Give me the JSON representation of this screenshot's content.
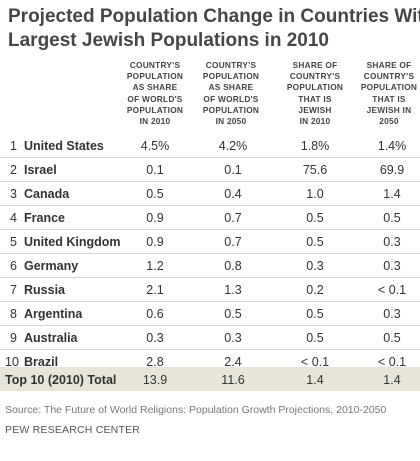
{
  "title": {
    "line1": "Projected Population Change in Countries With",
    "line2": "Largest Jewish Populations in 2010"
  },
  "columns": [
    {
      "line1": "COUNTRY'S",
      "line2": "POPULATION",
      "line3": "AS SHARE",
      "line4": "OF WORLD'S",
      "line5": "POPULATION",
      "line6": "IN 2010"
    },
    {
      "line1": "COUNTRY'S",
      "line2": "POPULATION",
      "line3": "AS SHARE",
      "line4": "OF WORLD'S",
      "line5": "POPULATION",
      "line6": "IN 2050"
    },
    {
      "line1": "SHARE OF",
      "line2": "COUNTRY'S",
      "line3": "POPULATION",
      "line4": "THAT IS",
      "line5": "JEWISH",
      "line6": "IN 2010"
    },
    {
      "line1": "SHARE OF",
      "line2": "COUNTRY'S",
      "line3": "POPULATION",
      "line4": "THAT IS",
      "line5": "JEWISH IN",
      "line6": "2050"
    }
  ],
  "rows": [
    {
      "rank": "1",
      "country": "United States",
      "v1": "4.5%",
      "v2": "4.2%",
      "v3": "1.8%",
      "v4": "1.4%"
    },
    {
      "rank": "2",
      "country": "Israel",
      "v1": "0.1",
      "v2": "0.1",
      "v3": "75.6",
      "v4": "69.9"
    },
    {
      "rank": "3",
      "country": "Canada",
      "v1": "0.5",
      "v2": "0.4",
      "v3": "1.0",
      "v4": "1.4"
    },
    {
      "rank": "4",
      "country": "France",
      "v1": "0.9",
      "v2": "0.7",
      "v3": "0.5",
      "v4": "0.5"
    },
    {
      "rank": "5",
      "country": "United Kingdom",
      "v1": "0.9",
      "v2": "0.7",
      "v3": "0.5",
      "v4": "0.3"
    },
    {
      "rank": "6",
      "country": "Germany",
      "v1": "1.2",
      "v2": "0.8",
      "v3": "0.3",
      "v4": "0.3"
    },
    {
      "rank": "7",
      "country": "Russia",
      "v1": "2.1",
      "v2": "1.3",
      "v3": "0.2",
      "v4": "< 0.1"
    },
    {
      "rank": "8",
      "country": "Argentina",
      "v1": "0.6",
      "v2": "0.5",
      "v3": "0.5",
      "v4": "0.3"
    },
    {
      "rank": "9",
      "country": "Australia",
      "v1": "0.3",
      "v2": "0.3",
      "v3": "0.5",
      "v4": "0.5"
    },
    {
      "rank": "10",
      "country": "Brazil",
      "v1": "2.8",
      "v2": "2.4",
      "v3": "< 0.1",
      "v4": "< 0.1"
    }
  ],
  "total": {
    "label": "Top 10 (2010) Total",
    "v1": "13.9",
    "v2": "11.6",
    "v3": "1.4",
    "v4": "1.4"
  },
  "source": "Source: The Future of World Religions: Population Growth Projections, 2010-2050",
  "org": "PEW RESEARCH CENTER",
  "colors": {
    "total_row_bg": "#e6e5d8",
    "divider": "#d4d4d4",
    "title": "#464646"
  }
}
